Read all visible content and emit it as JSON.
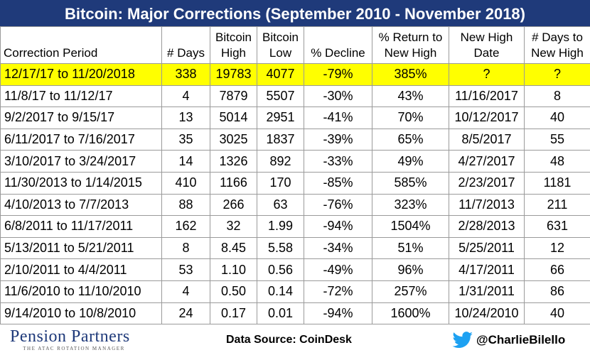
{
  "title": "Bitcoin: Major Corrections (September 2010 - November 2018)",
  "columns": [
    "Correction Period",
    "# Days",
    "Bitcoin High",
    "Bitcoin Low",
    "% Decline",
    "% Return to New High",
    "New High Date",
    "# Days to New High"
  ],
  "header_lines": [
    [
      "Correction Period"
    ],
    [
      "# Days"
    ],
    [
      "Bitcoin",
      "High"
    ],
    [
      "Bitcoin",
      "Low"
    ],
    [
      "% Decline"
    ],
    [
      "% Return to",
      "New High"
    ],
    [
      "New High",
      "Date"
    ],
    [
      "# Days to",
      "New High"
    ]
  ],
  "rows": [
    {
      "period": "12/17/17 to 11/20/2018",
      "days": "338",
      "high": "19783",
      "low": "4077",
      "decline": "-79%",
      "return": "385%",
      "new_high_date": "?",
      "days_to_new_high": "?"
    },
    {
      "period": "11/8/17 to 11/12/17",
      "days": "4",
      "high": "7879",
      "low": "5507",
      "decline": "-30%",
      "return": "43%",
      "new_high_date": "11/16/2017",
      "days_to_new_high": "8"
    },
    {
      "period": "9/2/2017 to 9/15/17",
      "days": "13",
      "high": "5014",
      "low": "2951",
      "decline": "-41%",
      "return": "70%",
      "new_high_date": "10/12/2017",
      "days_to_new_high": "40"
    },
    {
      "period": "6/11/2017 to 7/16/2017",
      "days": "35",
      "high": "3025",
      "low": "1837",
      "decline": "-39%",
      "return": "65%",
      "new_high_date": "8/5/2017",
      "days_to_new_high": "55"
    },
    {
      "period": "3/10/2017 to 3/24/2017",
      "days": "14",
      "high": "1326",
      "low": "892",
      "decline": "-33%",
      "return": "49%",
      "new_high_date": "4/27/2017",
      "days_to_new_high": "48"
    },
    {
      "period": "11/30/2013 to 1/14/2015",
      "days": "410",
      "high": "1166",
      "low": "170",
      "decline": "-85%",
      "return": "585%",
      "new_high_date": "2/23/2017",
      "days_to_new_high": "1181"
    },
    {
      "period": "4/10/2013 to 7/7/2013",
      "days": "88",
      "high": "266",
      "low": "63",
      "decline": "-76%",
      "return": "323%",
      "new_high_date": "11/7/2013",
      "days_to_new_high": "211"
    },
    {
      "period": "6/8/2011 to 11/17/2011",
      "days": "162",
      "high": "32",
      "low": "1.99",
      "decline": "-94%",
      "return": "1504%",
      "new_high_date": "2/28/2013",
      "days_to_new_high": "631"
    },
    {
      "period": "5/13/2011 to 5/21/2011",
      "days": "8",
      "high": "8.45",
      "low": "5.58",
      "decline": "-34%",
      "return": "51%",
      "new_high_date": "5/25/2011",
      "days_to_new_high": "12"
    },
    {
      "period": "2/10/2011 to 4/4/2011",
      "days": "53",
      "high": "1.10",
      "low": "0.56",
      "decline": "-49%",
      "return": "96%",
      "new_high_date": "4/17/2011",
      "days_to_new_high": "66"
    },
    {
      "period": "11/6/2010 to 11/10/2010",
      "days": "4",
      "high": "0.50",
      "low": "0.14",
      "decline": "-72%",
      "return": "257%",
      "new_high_date": "1/31/2011",
      "days_to_new_high": "86"
    },
    {
      "period": "9/14/2010 to 10/8/2010",
      "days": "24",
      "high": "0.17",
      "low": "0.01",
      "decline": "-94%",
      "return": "1600%",
      "new_high_date": "10/24/2010",
      "days_to_new_high": "40"
    }
  ],
  "highlight_row": 0,
  "chart_data": {
    "type": "table",
    "title": "Bitcoin: Major Corrections (September 2010 - November 2018)",
    "columns": [
      "Correction Period",
      "# Days",
      "Bitcoin High",
      "Bitcoin Low",
      "% Decline",
      "% Return to New High",
      "New High Date",
      "# Days to New High"
    ],
    "rows": [
      [
        "12/17/17 to 11/20/2018",
        338,
        19783,
        4077,
        "-79%",
        "385%",
        "?",
        "?"
      ],
      [
        "11/8/17 to 11/12/17",
        4,
        7879,
        5507,
        "-30%",
        "43%",
        "11/16/2017",
        8
      ],
      [
        "9/2/2017 to 9/15/17",
        13,
        5014,
        2951,
        "-41%",
        "70%",
        "10/12/2017",
        40
      ],
      [
        "6/11/2017 to 7/16/2017",
        35,
        3025,
        1837,
        "-39%",
        "65%",
        "8/5/2017",
        55
      ],
      [
        "3/10/2017 to 3/24/2017",
        14,
        1326,
        892,
        "-33%",
        "49%",
        "4/27/2017",
        48
      ],
      [
        "11/30/2013 to 1/14/2015",
        410,
        1166,
        170,
        "-85%",
        "585%",
        "2/23/2017",
        1181
      ],
      [
        "4/10/2013 to 7/7/2013",
        88,
        266,
        63,
        "-76%",
        "323%",
        "11/7/2013",
        211
      ],
      [
        "6/8/2011 to 11/17/2011",
        162,
        32,
        1.99,
        "-94%",
        "1504%",
        "2/28/2013",
        631
      ],
      [
        "5/13/2011 to 5/21/2011",
        8,
        8.45,
        5.58,
        "-34%",
        "51%",
        "5/25/2011",
        12
      ],
      [
        "2/10/2011 to 4/4/2011",
        53,
        1.1,
        0.56,
        "-49%",
        "96%",
        "4/17/2011",
        66
      ],
      [
        "11/6/2010 to 11/10/2010",
        4,
        0.5,
        0.14,
        "-72%",
        "257%",
        "1/31/2011",
        86
      ],
      [
        "9/14/2010 to 10/8/2010",
        24,
        0.17,
        0.01,
        "-94%",
        "1600%",
        "10/24/2010",
        40
      ]
    ]
  },
  "footer": {
    "logo_text": "Pension Partners",
    "logo_tagline": "THE ATAC ROTATION MANAGER",
    "source": "Data Source: CoinDesk",
    "handle": "@CharlieBilello",
    "handle_icon": "twitter-bird-icon"
  },
  "colors": {
    "title_bg": "#1f3a7a",
    "highlight": "#ffff00",
    "twitter_blue": "#1da1f2",
    "logo_navy": "#1f3a7a"
  }
}
